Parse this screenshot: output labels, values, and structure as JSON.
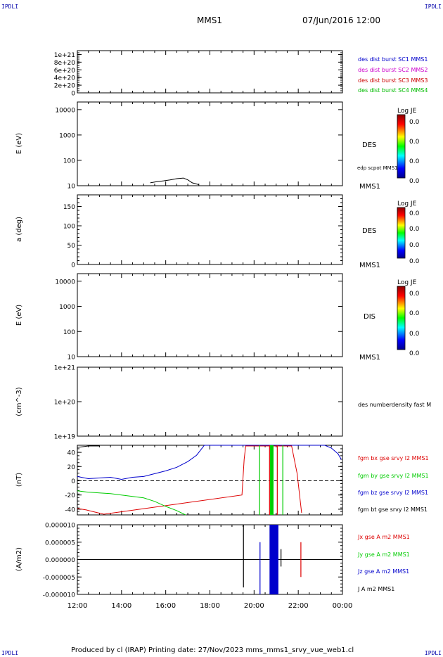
{
  "header": {
    "corner_tl": "IPDLI",
    "corner_tr": "IPDLI",
    "corner_bl": "IPDLI",
    "corner_br": "IPDLI",
    "title": "MMS1",
    "datetime": "07/Jun/2016 12:00"
  },
  "footer": {
    "text": "Produced by cl (IRAP)   Printing date: 27/Nov/2023   mms_mms1_srvy_vue_web1.cl"
  },
  "colors": {
    "c1": "#0000cc",
    "c2": "#cc00cc",
    "c3": "#cc0000",
    "c4": "#00bb00",
    "red": "#dd0000",
    "green": "#00cc00",
    "blue": "#0000cc",
    "black": "#000000"
  },
  "colorbar": {
    "title": "Log JE",
    "ticks": [
      "0.0",
      "0.0",
      "0.0",
      "0.0"
    ]
  },
  "panels": {
    "dist": {
      "yticks": [
        "1e+21",
        "8e+20",
        "6e+20",
        "4e+20",
        "2e+20",
        "0"
      ],
      "legend": [
        "des dist burst SC1 MMS1",
        "des dist burst SC2 MMS2",
        "des dist burst SC3 MMS3",
        "des dist burst SC4 MMS4"
      ]
    },
    "des_e": {
      "ylabel": "E (eV)",
      "yticks": [
        "10000",
        "1000",
        "100",
        "10"
      ],
      "label": "DES",
      "sublabel": "edp scpot MMS1",
      "sc": "MMS1"
    },
    "des_pa": {
      "ylabel": "a (deg)",
      "yticks": [
        "150",
        "100",
        "50",
        "0"
      ],
      "label": "DES",
      "sc": "MMS1"
    },
    "dis_e": {
      "ylabel": "E (eV)",
      "yticks": [
        "10000",
        "1000",
        "100",
        "10"
      ],
      "label": "DIS",
      "sc": "MMS1"
    },
    "dens": {
      "ylabel": "(cm^-3)",
      "yticks": [
        "1e+21",
        "1e+20",
        "1e+19"
      ],
      "legend": "des numberdensity fast M"
    },
    "bfield": {
      "ylabel": "(nT)",
      "yticks": [
        "40",
        "20",
        "0",
        "-20",
        "-40"
      ],
      "legend": [
        "fgm bx gse srvy l2 MMS1",
        "fgm by gse srvy l2 MMS1",
        "fgm bz gse srvy l2 MMS1",
        "fgm bt gse srvy l2 MMS1"
      ]
    },
    "current": {
      "ylabel": "(A/m2)",
      "yticks": [
        "0.000010",
        "0.000005",
        "0.000000",
        "-0.000005",
        "-0.000010"
      ],
      "legend": [
        "Jx gse A m2 MMS1",
        "Jy gse A m2 MMS1",
        "Jz gse A m2 MMS1",
        "J A m2 MMS1"
      ]
    }
  },
  "xaxis": {
    "ticks": [
      "12:00",
      "14:00",
      "16:00",
      "18:00",
      "20:00",
      "22:00",
      "00:00"
    ]
  },
  "chart_data": [
    {
      "type": "line",
      "ylim": [
        0,
        1.1e+21
      ],
      "series": []
    },
    {
      "type": "line",
      "yscale": "log",
      "ylim": [
        10,
        20000
      ],
      "series": [
        {
          "name": "edp scpot MMS1",
          "x": [
            15.3,
            15.6,
            15.9,
            16.2,
            16.5,
            16.8,
            17.0,
            17.2,
            17.5
          ],
          "y": [
            13,
            14.5,
            15.5,
            17,
            19,
            20,
            17,
            13,
            11
          ]
        }
      ]
    },
    {
      "type": "line",
      "ylim": [
        0,
        180
      ],
      "series": []
    },
    {
      "type": "line",
      "yscale": "log",
      "ylim": [
        10,
        20000
      ],
      "series": []
    },
    {
      "type": "line",
      "yscale": "log",
      "ylim": [
        1e+19,
        1e+21
      ],
      "series": []
    },
    {
      "type": "line",
      "ylim": [
        -48,
        50
      ],
      "series": [
        {
          "name": "fgm bx gse srvy l2 MMS1",
          "x": [
            12.0,
            12.4,
            12.8,
            13.2,
            19.45,
            19.55,
            19.62,
            21.7,
            21.95,
            22.15
          ],
          "y": [
            -39,
            -41,
            -44,
            -47,
            -20,
            30,
            49,
            49,
            10,
            -45
          ]
        },
        {
          "name": "fgm by gse srvy l2 MMS1",
          "x": [
            12.0,
            12.5,
            13.0,
            13.5,
            14.0,
            14.5,
            15.0,
            15.5,
            16.0,
            16.5,
            16.9
          ],
          "y": [
            -14,
            -16,
            -17,
            -18,
            -20,
            -22,
            -24,
            -29,
            -36,
            -42,
            -48
          ]
        },
        {
          "name": "fgm bz gse srvy l2 MMS1",
          "x": [
            12.0,
            12.5,
            13.0,
            13.5,
            14.0,
            14.5,
            15.0,
            15.5,
            16.0,
            16.5,
            17.0,
            17.4,
            17.75,
            23.2,
            23.5,
            23.8,
            23.95
          ],
          "y": [
            6,
            3,
            4,
            5,
            2,
            5,
            6,
            10,
            14,
            19,
            27,
            36,
            50,
            50,
            46,
            38,
            30
          ]
        },
        {
          "name": "fgm bt gse srvy l2 MMS1",
          "x": [
            12.0,
            12.5,
            13.0
          ],
          "y": [
            47,
            49,
            49
          ]
        }
      ],
      "bursts": [
        {
          "x": 20.25,
          "color": "green"
        },
        {
          "x": 20.7,
          "color": "red"
        },
        {
          "x": 20.8,
          "color": "green",
          "wide": true
        },
        {
          "x": 21.05,
          "color": "red"
        },
        {
          "x": 21.3,
          "color": "green"
        }
      ]
    },
    {
      "type": "line",
      "ylim": [
        -1e-05,
        1e-05
      ],
      "series": [
        {
          "name": "Jx gse A m2 MMS1",
          "x": [
            12.0,
            24.0
          ],
          "y": [
            0,
            0
          ]
        },
        {
          "name": "Jy gse A m2 MMS1",
          "x": [
            12.0,
            24.0
          ],
          "y": [
            0,
            0
          ]
        },
        {
          "name": "Jz gse A m2 MMS1",
          "x": [
            12.0,
            24.0
          ],
          "y": [
            0,
            0
          ]
        },
        {
          "name": "J A m2 MMS1",
          "x": [
            12.0,
            24.0
          ],
          "y": [
            0,
            0
          ]
        }
      ],
      "bursts": [
        {
          "x": 19.5,
          "ymin": -8e-06,
          "ymax": 1e-05,
          "color": "black"
        },
        {
          "x": 20.25,
          "ymin": -1e-05,
          "ymax": 5e-06,
          "color": "blue"
        },
        {
          "x": 20.7,
          "x2": 21.1,
          "ymin": -1e-05,
          "ymax": 1e-05,
          "color": "blue"
        },
        {
          "x": 21.2,
          "ymin": -2e-06,
          "ymax": 3e-06,
          "color": "black"
        },
        {
          "x": 22.1,
          "ymin": -5e-06,
          "ymax": 5e-06,
          "color": "red"
        }
      ]
    }
  ]
}
